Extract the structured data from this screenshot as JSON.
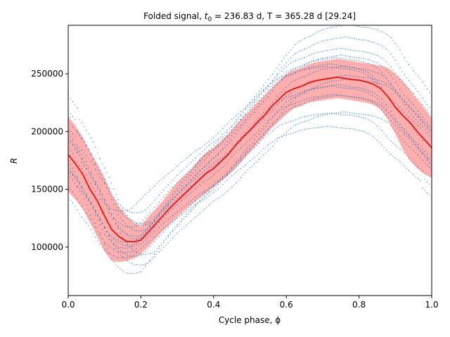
{
  "chart_data": {
    "type": "line",
    "title_parts": [
      "Folded signal, ",
      "t",
      "0",
      " = 236.83 d, T = 365.28 d [29.24]"
    ],
    "xlabel": "Cycle phase, ϕ",
    "ylabel": "R",
    "xlim": [
      0.0,
      1.0
    ],
    "ylim": [
      58000,
      292000
    ],
    "xticks": [
      0.0,
      0.2,
      0.4,
      0.6,
      0.8,
      1.0
    ],
    "xtick_labels": [
      "0.0",
      "0.2",
      "0.4",
      "0.6",
      "0.8",
      "1.0"
    ],
    "yticks": [
      100000,
      150000,
      200000,
      250000
    ],
    "ytick_labels": [
      "100000",
      "150000",
      "200000",
      "250000"
    ],
    "grid": false,
    "colors": {
      "mean": "#ff0000",
      "band": "#ffaaaa",
      "points": "#1f77b4"
    },
    "mean_curve": {
      "x": [
        0.0,
        0.02,
        0.04,
        0.06,
        0.08,
        0.1,
        0.12,
        0.14,
        0.16,
        0.18,
        0.2,
        0.22,
        0.24,
        0.26,
        0.28,
        0.3,
        0.32,
        0.34,
        0.36,
        0.38,
        0.4,
        0.42,
        0.44,
        0.46,
        0.48,
        0.5,
        0.52,
        0.54,
        0.56,
        0.58,
        0.6,
        0.62,
        0.64,
        0.66,
        0.68,
        0.7,
        0.72,
        0.74,
        0.76,
        0.78,
        0.8,
        0.82,
        0.84,
        0.86,
        0.88,
        0.9,
        0.92,
        0.94,
        0.96,
        0.98,
        1.0
      ],
      "y": [
        180000,
        172000,
        163000,
        150000,
        140000,
        127000,
        115000,
        109000,
        105000,
        104500,
        106000,
        113000,
        120000,
        127000,
        134000,
        140000,
        146000,
        152000,
        158000,
        164000,
        168000,
        174000,
        180000,
        188000,
        195000,
        201000,
        208000,
        214000,
        222000,
        228000,
        234000,
        237000,
        239000,
        242000,
        244000,
        245000,
        246000,
        247000,
        246000,
        245000,
        244500,
        243000,
        241000,
        237000,
        230000,
        221000,
        214000,
        208000,
        200000,
        193000,
        186000
      ]
    },
    "band": {
      "upper": [
        213000,
        205000,
        195000,
        183000,
        172000,
        160000,
        146000,
        135000,
        127000,
        121000,
        118000,
        126000,
        133000,
        140000,
        148000,
        156000,
        162000,
        168000,
        176000,
        182000,
        186000,
        192000,
        198000,
        205000,
        212000,
        218000,
        225000,
        231000,
        238000,
        244000,
        250000,
        253000,
        255000,
        258000,
        260000,
        261000,
        262000,
        263000,
        262000,
        261000,
        260000,
        259000,
        258000,
        257000,
        255000,
        250000,
        244000,
        236000,
        228000,
        220000,
        212000
      ],
      "lower": [
        148000,
        141000,
        133000,
        121000,
        109000,
        96000,
        88000,
        87000,
        88000,
        90000,
        94000,
        100000,
        107000,
        114000,
        120000,
        126000,
        132000,
        137000,
        142000,
        147000,
        152000,
        157000,
        162000,
        168000,
        175000,
        182000,
        189000,
        196000,
        203000,
        209000,
        215000,
        220000,
        222000,
        225000,
        226000,
        227000,
        228000,
        229000,
        228000,
        227000,
        226000,
        225000,
        223000,
        219000,
        210000,
        198000,
        185000,
        175000,
        168000,
        163000,
        160000
      ]
    },
    "scatter_curves": [
      {
        "amplitude": 1.0,
        "offset": 0,
        "phase_shift": 0.0
      },
      {
        "amplitude": 1.1,
        "offset": 12000,
        "phase_shift": 0.01
      },
      {
        "amplitude": 0.92,
        "offset": -9000,
        "phase_shift": -0.01
      },
      {
        "amplitude": 1.18,
        "offset": 22000,
        "phase_shift": 0.02
      },
      {
        "amplitude": 0.85,
        "offset": -20000,
        "phase_shift": -0.02
      },
      {
        "amplitude": 1.05,
        "offset": 6000,
        "phase_shift": 0.015
      },
      {
        "amplitude": 0.95,
        "offset": -4000,
        "phase_shift": -0.015
      },
      {
        "amplitude": 1.22,
        "offset": 30000,
        "phase_shift": 0.03
      },
      {
        "amplitude": 0.8,
        "offset": -28000,
        "phase_shift": -0.025
      },
      {
        "amplitude": 1.03,
        "offset": 15000,
        "phase_shift": -0.005
      },
      {
        "amplitude": 0.98,
        "offset": -14000,
        "phase_shift": 0.005
      },
      {
        "amplitude": 1.12,
        "offset": 3000,
        "phase_shift": -0.02
      },
      {
        "amplitude": 0.9,
        "offset": 9000,
        "phase_shift": 0.025
      },
      {
        "amplitude": 1.07,
        "offset": -6000,
        "phase_shift": 0.035
      },
      {
        "amplitude": 0.88,
        "offset": 18000,
        "phase_shift": -0.03
      },
      {
        "amplitude": 1.15,
        "offset": -17000,
        "phase_shift": 0.0
      },
      {
        "amplitude": 1.0,
        "offset": 25000,
        "phase_shift": 0.01
      },
      {
        "amplitude": 0.93,
        "offset": -25000,
        "phase_shift": 0.02
      }
    ]
  }
}
